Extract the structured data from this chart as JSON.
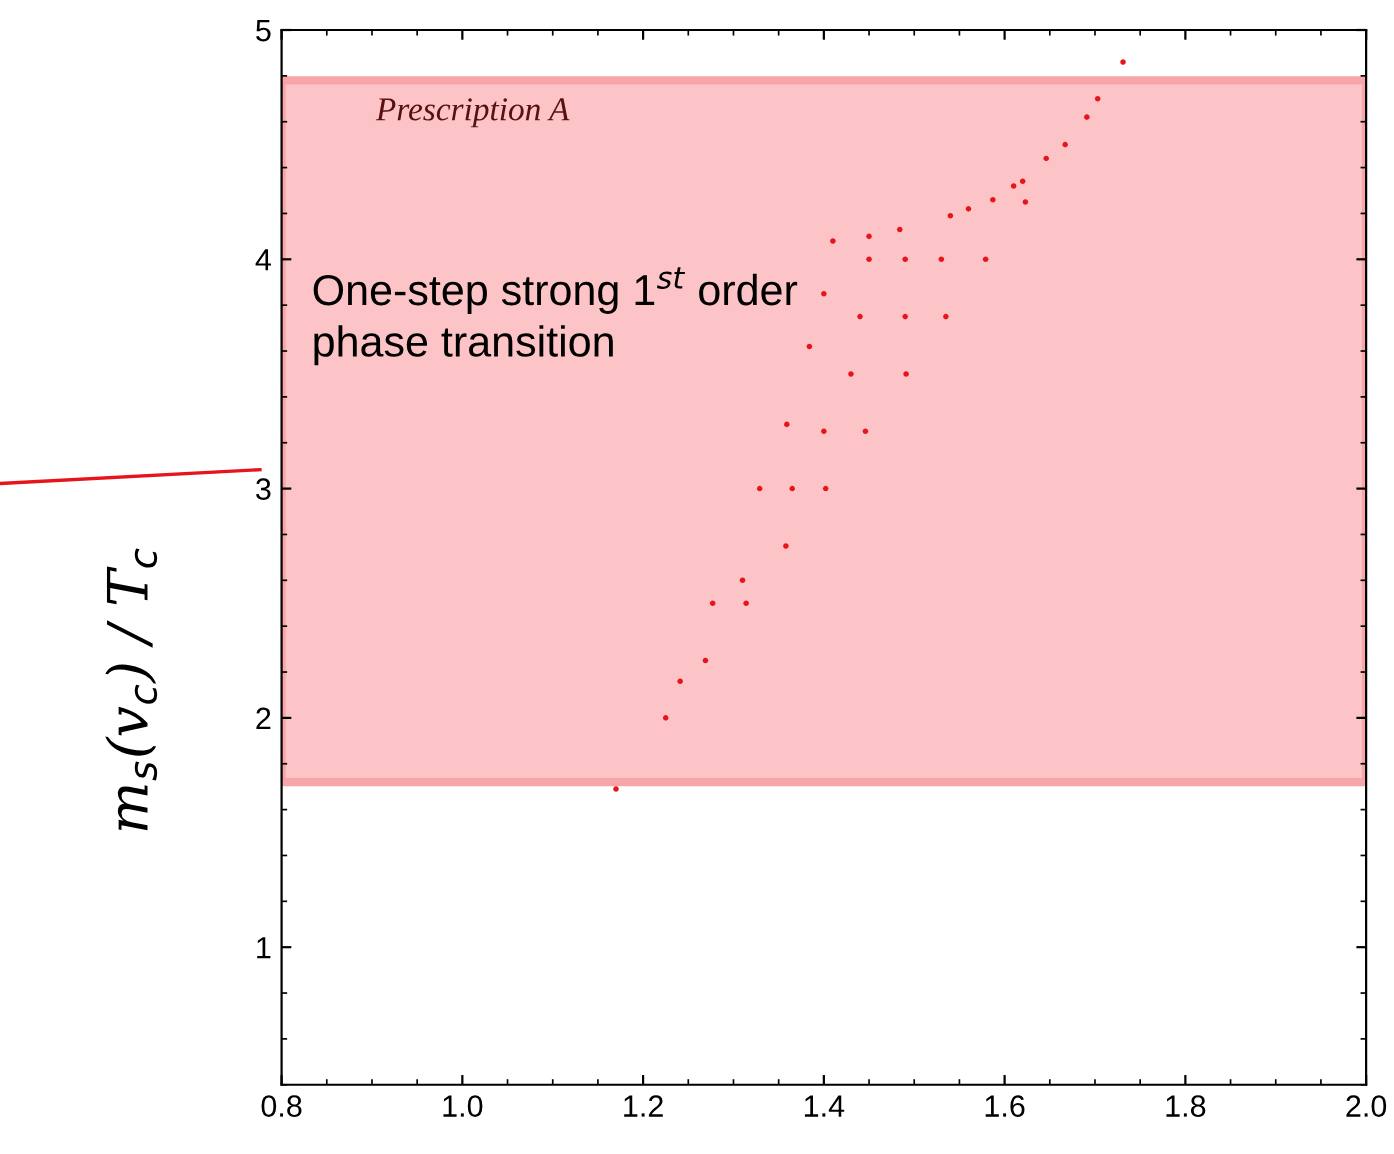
{
  "chart_data": {
    "type": "scatter",
    "ylabel": "m$_{s}$(v$_{c}$) / T$_{c}$",
    "x": [
      1.17,
      1.225,
      1.269,
      1.314,
      1.358,
      1.402,
      1.446,
      1.491,
      1.535,
      1.579,
      1.623,
      1.667,
      1.703,
      1.731,
      1.241,
      1.277,
      1.329,
      1.359,
      1.384,
      1.4,
      1.41,
      1.45,
      1.484,
      1.54,
      1.587,
      1.62,
      1.646,
      1.691,
      1.31,
      1.365,
      1.4,
      1.43,
      1.44,
      1.49,
      1.45,
      1.49,
      1.53,
      1.56,
      1.61
    ],
    "series": [
      {
        "color": "#e8141c",
        "values": [
          1.69,
          2.0,
          2.25,
          2.5,
          2.75,
          3.0,
          3.25,
          3.5,
          3.75,
          4.0,
          4.25,
          4.5,
          4.7,
          4.86,
          2.16,
          2.5,
          3.0,
          3.28,
          3.62,
          3.85,
          4.08,
          4.1,
          4.13,
          4.19,
          4.26,
          4.34,
          4.44,
          4.62,
          2.6,
          3.0,
          3.25,
          3.5,
          3.75,
          3.75,
          4.0,
          4.0,
          4.0,
          4.22,
          4.32
        ]
      }
    ],
    "xlim": [
      0.8,
      2.0
    ],
    "xticks": [
      {
        "value": 0.8,
        "label": "0.8"
      },
      {
        "value": 1.0,
        "label": "1.0"
      },
      {
        "value": 1.2,
        "label": "1.2"
      },
      {
        "value": 1.4,
        "label": "1.4"
      },
      {
        "value": 1.6,
        "label": "1.6"
      },
      {
        "value": 1.8,
        "label": "1.8"
      },
      {
        "value": 2.0,
        "label": "2.0"
      }
    ],
    "ylim": [
      0.4,
      5.0
    ],
    "yticks": [
      1,
      2,
      3,
      4,
      5
    ],
    "bands": [
      {
        "axis": "y",
        "from": 1.72,
        "to": 4.78,
        "label": "Prescription A",
        "color": "#fcc4c6"
      }
    ],
    "annotations": [
      "One-step strong 1$^{st}$ order\nphase transition"
    ],
    "marker": "circle",
    "grid": false,
    "legend": false
  }
}
